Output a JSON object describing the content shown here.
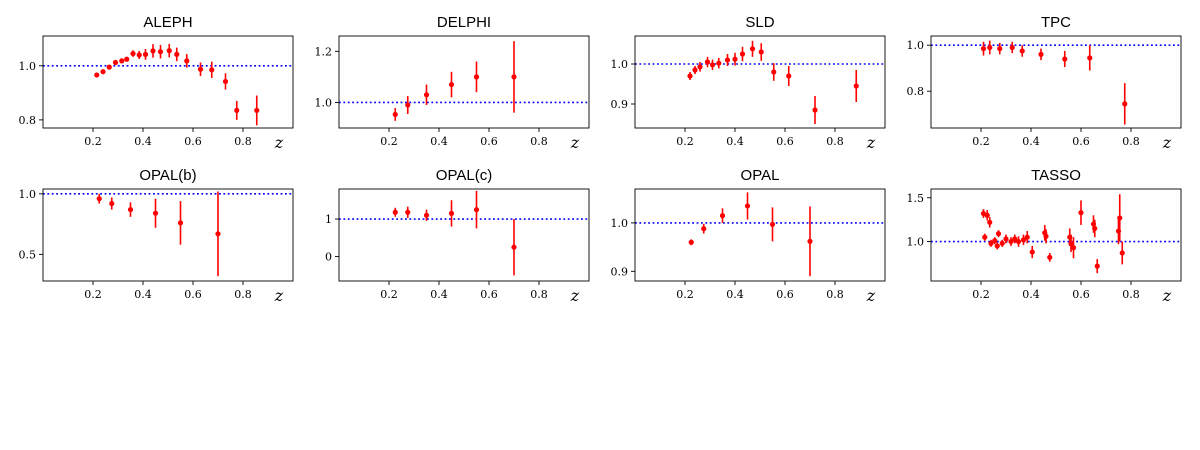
{
  "figure": {
    "panels": [
      "ALEPH",
      "DELPHI",
      "SLD",
      "TPC",
      "OPAL(b)",
      "OPAL(c)",
      "OPAL",
      "TASSO"
    ]
  },
  "chart_data": [
    {
      "type": "scatter",
      "title": "ALEPH",
      "xlabel": "z",
      "ylabel": "",
      "xlim": [
        0.0,
        1.0
      ],
      "ylim": [
        0.77,
        1.11
      ],
      "xticks": [
        0.2,
        0.4,
        0.6,
        0.8
      ],
      "yticks": [
        0.8,
        1.0
      ],
      "xtick_labels": [
        "0.2",
        "0.4",
        "0.6",
        "0.8"
      ],
      "ytick_labels": [
        "0.8",
        "1.0"
      ],
      "reference_line": 1.0,
      "points": [
        {
          "x": 0.215,
          "y": 0.966,
          "err": 0.004
        },
        {
          "x": 0.24,
          "y": 0.978,
          "err": 0.004
        },
        {
          "x": 0.265,
          "y": 0.995,
          "err": 0.005
        },
        {
          "x": 0.29,
          "y": 1.012,
          "err": 0.006
        },
        {
          "x": 0.315,
          "y": 1.018,
          "err": 0.007
        },
        {
          "x": 0.335,
          "y": 1.024,
          "err": 0.008
        },
        {
          "x": 0.36,
          "y": 1.045,
          "err": 0.012
        },
        {
          "x": 0.385,
          "y": 1.04,
          "err": 0.015
        },
        {
          "x": 0.41,
          "y": 1.042,
          "err": 0.02
        },
        {
          "x": 0.44,
          "y": 1.055,
          "err": 0.025
        },
        {
          "x": 0.47,
          "y": 1.052,
          "err": 0.025
        },
        {
          "x": 0.505,
          "y": 1.056,
          "err": 0.025
        },
        {
          "x": 0.535,
          "y": 1.042,
          "err": 0.025
        },
        {
          "x": 0.575,
          "y": 1.018,
          "err": 0.025
        },
        {
          "x": 0.63,
          "y": 0.987,
          "err": 0.025
        },
        {
          "x": 0.675,
          "y": 0.985,
          "err": 0.03
        },
        {
          "x": 0.73,
          "y": 0.942,
          "err": 0.03
        },
        {
          "x": 0.775,
          "y": 0.835,
          "err": 0.035
        },
        {
          "x": 0.855,
          "y": 0.835,
          "err": 0.055
        }
      ]
    },
    {
      "type": "scatter",
      "title": "DELPHI",
      "xlabel": "z",
      "ylabel": "",
      "xlim": [
        0.0,
        1.0
      ],
      "ylim": [
        0.9,
        1.26
      ],
      "xticks": [
        0.2,
        0.4,
        0.6,
        0.8
      ],
      "yticks": [
        1.0,
        1.2
      ],
      "xtick_labels": [
        "0.2",
        "0.4",
        "0.6",
        "0.8"
      ],
      "ytick_labels": [
        "1.0",
        "1.2"
      ],
      "reference_line": 1.0,
      "points": [
        {
          "x": 0.225,
          "y": 0.953,
          "err": 0.025
        },
        {
          "x": 0.275,
          "y": 0.99,
          "err": 0.035
        },
        {
          "x": 0.35,
          "y": 1.03,
          "err": 0.04
        },
        {
          "x": 0.45,
          "y": 1.07,
          "err": 0.05
        },
        {
          "x": 0.55,
          "y": 1.1,
          "err": 0.06
        },
        {
          "x": 0.7,
          "y": 1.1,
          "err": 0.14
        }
      ]
    },
    {
      "type": "scatter",
      "title": "SLD",
      "xlabel": "z",
      "ylabel": "",
      "xlim": [
        0.0,
        1.0
      ],
      "ylim": [
        0.84,
        1.07
      ],
      "xticks": [
        0.2,
        0.4,
        0.6,
        0.8
      ],
      "yticks": [
        0.9,
        1.0
      ],
      "xtick_labels": [
        "0.2",
        "0.4",
        "0.6",
        "0.8"
      ],
      "ytick_labels": [
        "0.9",
        "1.0"
      ],
      "reference_line": 1.0,
      "points": [
        {
          "x": 0.22,
          "y": 0.97,
          "err": 0.01
        },
        {
          "x": 0.24,
          "y": 0.985,
          "err": 0.01
        },
        {
          "x": 0.26,
          "y": 0.993,
          "err": 0.012
        },
        {
          "x": 0.29,
          "y": 1.005,
          "err": 0.013
        },
        {
          "x": 0.31,
          "y": 0.998,
          "err": 0.013
        },
        {
          "x": 0.335,
          "y": 1.002,
          "err": 0.013
        },
        {
          "x": 0.37,
          "y": 1.01,
          "err": 0.015
        },
        {
          "x": 0.4,
          "y": 1.012,
          "err": 0.016
        },
        {
          "x": 0.43,
          "y": 1.025,
          "err": 0.018
        },
        {
          "x": 0.47,
          "y": 1.038,
          "err": 0.02
        },
        {
          "x": 0.505,
          "y": 1.03,
          "err": 0.022
        },
        {
          "x": 0.555,
          "y": 0.98,
          "err": 0.022
        },
        {
          "x": 0.615,
          "y": 0.97,
          "err": 0.025
        },
        {
          "x": 0.72,
          "y": 0.885,
          "err": 0.035
        },
        {
          "x": 0.885,
          "y": 0.945,
          "err": 0.04
        }
      ]
    },
    {
      "type": "scatter",
      "title": "TPC",
      "xlabel": "z",
      "ylabel": "",
      "xlim": [
        0.0,
        1.0
      ],
      "ylim": [
        0.64,
        1.04
      ],
      "xticks": [
        0.2,
        0.4,
        0.6,
        0.8
      ],
      "yticks": [
        0.8,
        1.0
      ],
      "xtick_labels": [
        "0.2",
        "0.4",
        "0.6",
        "0.8"
      ],
      "ytick_labels": [
        "0.8",
        "1.0"
      ],
      "reference_line": 1.0,
      "points": [
        {
          "x": 0.21,
          "y": 0.985,
          "err": 0.03
        },
        {
          "x": 0.235,
          "y": 0.99,
          "err": 0.03
        },
        {
          "x": 0.275,
          "y": 0.985,
          "err": 0.025
        },
        {
          "x": 0.325,
          "y": 0.99,
          "err": 0.025
        },
        {
          "x": 0.365,
          "y": 0.975,
          "err": 0.025
        },
        {
          "x": 0.44,
          "y": 0.96,
          "err": 0.025
        },
        {
          "x": 0.535,
          "y": 0.94,
          "err": 0.035
        },
        {
          "x": 0.635,
          "y": 0.945,
          "err": 0.055
        },
        {
          "x": 0.775,
          "y": 0.745,
          "err": 0.09
        }
      ]
    },
    {
      "type": "scatter",
      "title": "OPAL(b)",
      "xlabel": "z",
      "ylabel": "",
      "xlim": [
        0.0,
        1.0
      ],
      "ylim": [
        0.28,
        1.04
      ],
      "xticks": [
        0.2,
        0.4,
        0.6,
        0.8
      ],
      "yticks": [
        0.5,
        1.0
      ],
      "xtick_labels": [
        "0.2",
        "0.4",
        "0.6",
        "0.8"
      ],
      "ytick_labels": [
        "0.5",
        "1.0"
      ],
      "reference_line": 1.0,
      "points": [
        {
          "x": 0.225,
          "y": 0.96,
          "err": 0.04
        },
        {
          "x": 0.275,
          "y": 0.92,
          "err": 0.05
        },
        {
          "x": 0.35,
          "y": 0.87,
          "err": 0.06
        },
        {
          "x": 0.45,
          "y": 0.84,
          "err": 0.12
        },
        {
          "x": 0.55,
          "y": 0.76,
          "err": 0.18
        },
        {
          "x": 0.7,
          "y": 0.67,
          "err": 0.35
        }
      ]
    },
    {
      "type": "scatter",
      "title": "OPAL(c)",
      "xlabel": "z",
      "ylabel": "",
      "xlim": [
        0.0,
        1.0
      ],
      "ylim": [
        -0.65,
        1.8
      ],
      "xticks": [
        0.2,
        0.4,
        0.6,
        0.8
      ],
      "yticks": [
        0,
        1
      ],
      "xtick_labels": [
        "0.2",
        "0.4",
        "0.6",
        "0.8"
      ],
      "ytick_labels": [
        "0",
        "1"
      ],
      "reference_line": 1.0,
      "points": [
        {
          "x": 0.225,
          "y": 1.18,
          "err": 0.12
        },
        {
          "x": 0.275,
          "y": 1.18,
          "err": 0.15
        },
        {
          "x": 0.35,
          "y": 1.1,
          "err": 0.15
        },
        {
          "x": 0.45,
          "y": 1.15,
          "err": 0.35
        },
        {
          "x": 0.55,
          "y": 1.25,
          "err": 0.5
        },
        {
          "x": 0.7,
          "y": 0.25,
          "err": 0.75
        }
      ]
    },
    {
      "type": "scatter",
      "title": "OPAL",
      "xlabel": "z",
      "ylabel": "",
      "xlim": [
        0.0,
        1.0
      ],
      "ylim": [
        0.88,
        1.07
      ],
      "xticks": [
        0.2,
        0.4,
        0.6,
        0.8
      ],
      "yticks": [
        0.9,
        1.0
      ],
      "xtick_labels": [
        "0.2",
        "0.4",
        "0.6",
        "0.8"
      ],
      "ytick_labels": [
        "0.9",
        "1.0"
      ],
      "reference_line": 1.0,
      "points": [
        {
          "x": 0.225,
          "y": 0.96,
          "err": 0.006
        },
        {
          "x": 0.275,
          "y": 0.988,
          "err": 0.01
        },
        {
          "x": 0.35,
          "y": 1.015,
          "err": 0.015
        },
        {
          "x": 0.45,
          "y": 1.035,
          "err": 0.028
        },
        {
          "x": 0.55,
          "y": 0.997,
          "err": 0.035
        },
        {
          "x": 0.7,
          "y": 0.962,
          "err": 0.072
        }
      ]
    },
    {
      "type": "scatter",
      "title": "TASSO",
      "xlabel": "z",
      "ylabel": "",
      "xlim": [
        0.0,
        1.0
      ],
      "ylim": [
        0.55,
        1.6
      ],
      "xticks": [
        0.2,
        0.4,
        0.6,
        0.8
      ],
      "yticks": [
        1.0,
        1.5
      ],
      "xtick_labels": [
        "0.2",
        "0.4",
        "0.6",
        "0.8"
      ],
      "ytick_labels": [
        "1.0",
        "1.5"
      ],
      "reference_line": 1.0,
      "points": [
        {
          "x": 0.21,
          "y": 1.32,
          "err": 0.05
        },
        {
          "x": 0.215,
          "y": 1.05,
          "err": 0.04
        },
        {
          "x": 0.225,
          "y": 1.3,
          "err": 0.06
        },
        {
          "x": 0.235,
          "y": 1.22,
          "err": 0.06
        },
        {
          "x": 0.24,
          "y": 0.98,
          "err": 0.04
        },
        {
          "x": 0.255,
          "y": 1.01,
          "err": 0.04
        },
        {
          "x": 0.265,
          "y": 0.95,
          "err": 0.04
        },
        {
          "x": 0.27,
          "y": 1.09,
          "err": 0.04
        },
        {
          "x": 0.285,
          "y": 0.98,
          "err": 0.04
        },
        {
          "x": 0.3,
          "y": 1.03,
          "err": 0.05
        },
        {
          "x": 0.32,
          "y": 1.0,
          "err": 0.05
        },
        {
          "x": 0.335,
          "y": 1.03,
          "err": 0.05
        },
        {
          "x": 0.35,
          "y": 1.0,
          "err": 0.06
        },
        {
          "x": 0.37,
          "y": 1.02,
          "err": 0.06
        },
        {
          "x": 0.385,
          "y": 1.05,
          "err": 0.07
        },
        {
          "x": 0.405,
          "y": 0.88,
          "err": 0.07
        },
        {
          "x": 0.455,
          "y": 1.1,
          "err": 0.09
        },
        {
          "x": 0.46,
          "y": 1.06,
          "err": 0.08
        },
        {
          "x": 0.475,
          "y": 0.82,
          "err": 0.05
        },
        {
          "x": 0.555,
          "y": 1.05,
          "err": 0.1
        },
        {
          "x": 0.56,
          "y": 0.98,
          "err": 0.1
        },
        {
          "x": 0.57,
          "y": 0.93,
          "err": 0.12
        },
        {
          "x": 0.6,
          "y": 1.33,
          "err": 0.14
        },
        {
          "x": 0.65,
          "y": 1.2,
          "err": 0.1
        },
        {
          "x": 0.655,
          "y": 1.15,
          "err": 0.1
        },
        {
          "x": 0.665,
          "y": 0.72,
          "err": 0.08
        },
        {
          "x": 0.75,
          "y": 1.12,
          "err": 0.15
        },
        {
          "x": 0.755,
          "y": 1.27,
          "err": 0.27
        },
        {
          "x": 0.765,
          "y": 0.87,
          "err": 0.13
        }
      ]
    }
  ]
}
